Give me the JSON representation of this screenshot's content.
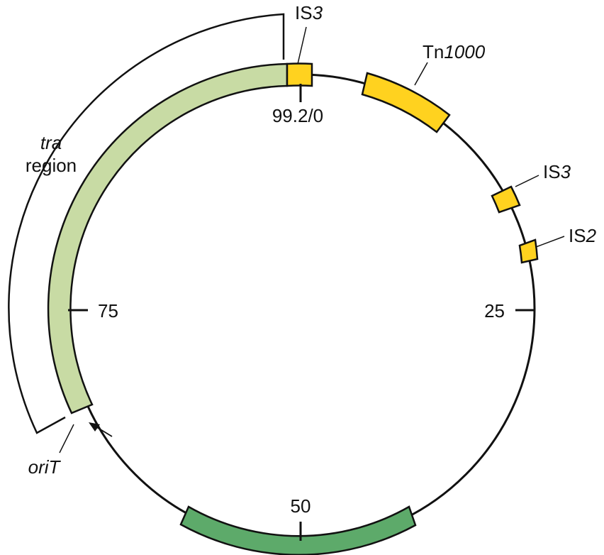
{
  "plasmid_map": {
    "labels": {
      "origin": "99.2/0",
      "quarter": "25",
      "half": "50",
      "three_quarter": "75",
      "is3_top": {
        "prefix": "IS",
        "suffix": "3"
      },
      "tn1000": {
        "prefix": "Tn",
        "suffix": "1000"
      },
      "is3_right": {
        "prefix": "IS",
        "suffix": "3"
      },
      "is2": {
        "prefix": "IS",
        "suffix": "2"
      },
      "tra_italic": "tra",
      "tra_word": "region",
      "orit": "oriT"
    },
    "colors": {
      "backbone": "#111111",
      "insertion_elements": "#FFD21F",
      "tra_region": "#C8DBA4",
      "green_segment": "#5DAA6A"
    }
  }
}
